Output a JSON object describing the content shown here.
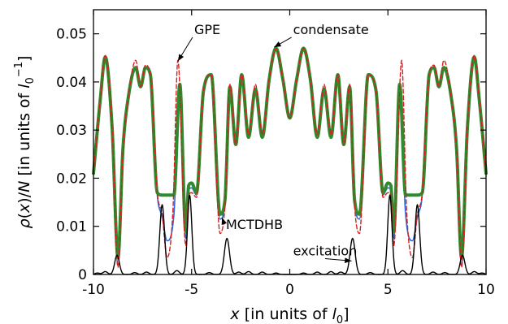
{
  "chart_data": {
    "type": "line",
    "title": "",
    "xlabel": "x [in units of l0]",
    "ylabel": "ρ(x)/N [in units of l0^-1]",
    "xlim": [
      -10,
      10
    ],
    "ylim": [
      0,
      0.055
    ],
    "xticks": [
      -10,
      -5,
      0,
      5,
      10
    ],
    "xtick_labels": [
      "-10",
      "-5",
      "0",
      "5",
      "10"
    ],
    "yticks": [
      0,
      0.01,
      0.02,
      0.03,
      0.04,
      0.05
    ],
    "ytick_labels": [
      "0",
      "0.01",
      "0.02",
      "0.03",
      "0.04",
      "0.05"
    ],
    "grid": false,
    "symmetric_about_zero": true,
    "series": [
      {
        "name": "MCTDHB",
        "color": "#2a6ad8",
        "style": "solid-thin",
        "x": [
          0,
          0.35,
          0.7,
          1.05,
          1.4,
          1.75,
          2.1,
          2.45,
          2.75,
          3.05,
          3.3,
          3.55,
          4.0,
          4.4,
          4.75,
          5.0,
          5.15,
          5.3,
          5.6,
          5.9,
          6.25,
          6.5,
          6.75,
          7.1,
          7.35,
          7.6,
          7.85,
          8.2,
          8.5,
          8.75,
          9.05,
          9.4,
          9.65,
          10.0
        ],
        "y": [
          0.0325,
          0.04,
          0.047,
          0.04,
          0.0285,
          0.0385,
          0.0285,
          0.0415,
          0.027,
          0.039,
          0.0152,
          0.0115,
          0.0415,
          0.038,
          0.0165,
          0.018,
          0.0175,
          0.0075,
          0.039,
          0.0125,
          0.007,
          0.012,
          0.0165,
          0.0415,
          0.043,
          0.039,
          0.0425,
          0.0375,
          0.0255,
          0.0018,
          0.0305,
          0.0452,
          0.0365,
          0.021
        ]
      },
      {
        "name": "condensate",
        "color": "#2e8b2e",
        "style": "solid-thick",
        "x": [
          0,
          0.35,
          0.7,
          1.05,
          1.4,
          1.75,
          2.1,
          2.45,
          2.75,
          3.05,
          3.3,
          3.55,
          4.0,
          4.4,
          4.75,
          5.0,
          5.15,
          5.3,
          5.6,
          5.9,
          6.25,
          6.5,
          6.75,
          7.1,
          7.35,
          7.6,
          7.85,
          8.2,
          8.5,
          8.75,
          9.05,
          9.4,
          9.65,
          10.0
        ],
        "y": [
          0.0325,
          0.0405,
          0.047,
          0.0405,
          0.0285,
          0.0385,
          0.0285,
          0.0415,
          0.027,
          0.039,
          0.0155,
          0.0125,
          0.0415,
          0.038,
          0.017,
          0.019,
          0.0185,
          0.009,
          0.0395,
          0.0165,
          0.0165,
          0.0165,
          0.017,
          0.0415,
          0.043,
          0.039,
          0.043,
          0.0375,
          0.026,
          0.0035,
          0.0305,
          0.0452,
          0.0365,
          0.021
        ]
      },
      {
        "name": "GPE",
        "color": "#d62020",
        "style": "dashed",
        "x": [
          0,
          0.35,
          0.7,
          1.05,
          1.4,
          1.75,
          2.1,
          2.45,
          2.75,
          3.05,
          3.3,
          3.55,
          4.0,
          4.4,
          4.75,
          5.0,
          5.15,
          5.3,
          5.7,
          5.95,
          6.25,
          6.5,
          6.75,
          7.1,
          7.35,
          7.6,
          7.85,
          8.2,
          8.5,
          8.75,
          9.05,
          9.4,
          9.65,
          10.0
        ],
        "y": [
          0.0325,
          0.0405,
          0.047,
          0.0405,
          0.029,
          0.0395,
          0.029,
          0.0415,
          0.027,
          0.0395,
          0.0145,
          0.0085,
          0.0415,
          0.038,
          0.016,
          0.017,
          0.0165,
          0.006,
          0.0445,
          0.0135,
          0.0035,
          0.0125,
          0.017,
          0.0415,
          0.0435,
          0.039,
          0.0445,
          0.0375,
          0.0255,
          0.0015,
          0.0305,
          0.0455,
          0.0365,
          0.021
        ]
      },
      {
        "name": "excitation",
        "color": "#000000",
        "style": "solid-thin",
        "peaks": [
          {
            "x": 3.2,
            "height": 0.0075,
            "width": 0.13
          },
          {
            "x": 5.1,
            "height": 0.0165,
            "width": 0.11
          },
          {
            "x": 6.5,
            "height": 0.0145,
            "width": 0.12
          },
          {
            "x": 8.8,
            "height": 0.004,
            "width": 0.12
          }
        ],
        "ripples": [
          {
            "x": 0.7,
            "height": 0.0003
          },
          {
            "x": 1.4,
            "height": 0.0005
          },
          {
            "x": 2.1,
            "height": 0.0006
          },
          {
            "x": 2.6,
            "height": 0.0005
          },
          {
            "x": 4.1,
            "height": 0.0004
          },
          {
            "x": 5.75,
            "height": 0.0008
          },
          {
            "x": 7.3,
            "height": 0.0005
          },
          {
            "x": 7.9,
            "height": 0.0004
          },
          {
            "x": 9.4,
            "height": 0.0006
          },
          {
            "x": 9.8,
            "height": 0.0003
          }
        ]
      }
    ],
    "annotations": [
      {
        "label": "GPE",
        "text_at": [
          -4.2,
          0.0508
        ],
        "arrow_to": [
          -5.7,
          0.0443
        ]
      },
      {
        "label": "condensate",
        "text_at": [
          2.1,
          0.0508
        ],
        "arrow_to": [
          -0.8,
          0.0472
        ]
      },
      {
        "label": "MCTDHB",
        "text_at": [
          -1.8,
          0.0103
        ],
        "arrow_to": [
          -3.45,
          0.0118
        ]
      },
      {
        "label": "excitation",
        "text_at": [
          1.8,
          0.0048
        ],
        "arrow_to": [
          3.15,
          0.0028
        ]
      }
    ]
  }
}
